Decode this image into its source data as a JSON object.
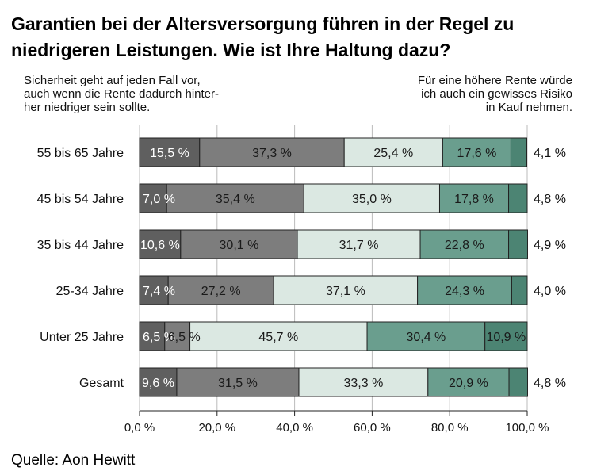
{
  "title": "Garantien bei der Altersversorgung führen in der Regel zu niedrigeren Leistungen. Wie ist Ihre Haltung dazu?",
  "notes": {
    "left": "Sicherheit geht auf jeden Fall vor,\nauch wenn die Rente dadurch hinter-\nher niedriger sein sollte.",
    "right": "Für eine höhere Rente würde\nich auch ein gewisses Risiko\nin Kauf nehmen."
  },
  "source": "Quelle: Aon Hewitt",
  "colors": [
    "#5f5f5f",
    "#7d7d7d",
    "#dbe8e2",
    "#6a9e8e",
    "#4c8473"
  ],
  "chart_data": {
    "type": "bar",
    "orientation": "horizontal",
    "stacked": true,
    "categories": [
      "55 bis 65 Jahre",
      "45 bis 54 Jahre",
      "35 bis 44 Jahre",
      "25-34 Jahre",
      "Unter 25 Jahre",
      "Gesamt"
    ],
    "series": [
      {
        "values": [
          15.5,
          7.0,
          10.6,
          7.4,
          6.5,
          9.6
        ],
        "labels": [
          "15,5 %",
          "7,0 %",
          "10,6 %",
          "7,4 %",
          "6,5 %",
          "9,6 %"
        ]
      },
      {
        "values": [
          37.3,
          35.4,
          30.1,
          27.2,
          6.5,
          31.5
        ],
        "labels": [
          "37,3 %",
          "35,4 %",
          "30,1 %",
          "27,2 %",
          "6,5 %",
          "31,5 %"
        ]
      },
      {
        "values": [
          25.4,
          35.0,
          31.7,
          37.1,
          45.7,
          33.3
        ],
        "labels": [
          "25,4 %",
          "35,0 %",
          "31,7 %",
          "37,1 %",
          "45,7 %",
          "33,3 %"
        ]
      },
      {
        "values": [
          17.6,
          17.8,
          22.8,
          24.3,
          30.4,
          20.9
        ],
        "labels": [
          "17,6 %",
          "17,8 %",
          "22,8 %",
          "24,3 %",
          "30,4 %",
          "20,9 %"
        ]
      },
      {
        "values": [
          4.1,
          4.8,
          4.9,
          4.0,
          10.9,
          4.8
        ],
        "labels": [
          "4,1 %",
          "4,8 %",
          "4,9 %",
          "4,0 %",
          "10,9 %",
          "4,8 %"
        ]
      }
    ],
    "xlim": [
      0,
      100
    ],
    "xticks": [
      0,
      20,
      40,
      60,
      80,
      100
    ],
    "xtick_labels": [
      "0,0 %",
      "20,0 %",
      "40,0 %",
      "60,0 %",
      "80,0 %",
      "100,0 %"
    ],
    "grid": "vertical"
  }
}
